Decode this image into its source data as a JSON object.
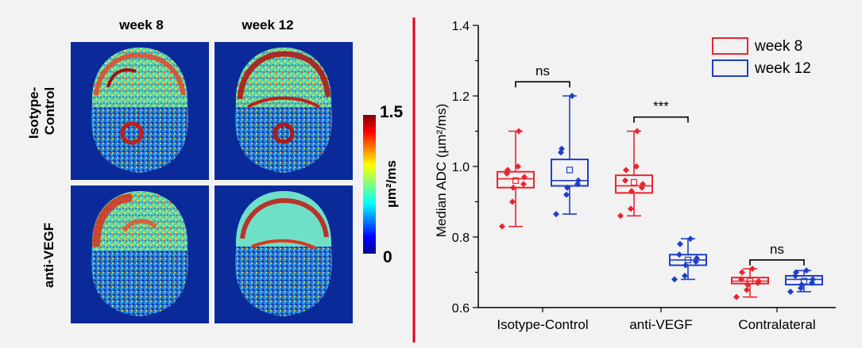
{
  "left_panel": {
    "columns": [
      "week 8",
      "week 12"
    ],
    "rows": [
      "Isotype-\nControl",
      "anti-VEGF"
    ],
    "colorbar": {
      "max_label": "1.5",
      "min_label": "0",
      "unit_label": "µm²/ms",
      "colormap": "jet"
    }
  },
  "divider_color": "#e0001b",
  "chart_data": {
    "type": "box",
    "xlabel": "",
    "ylabel": "Median ADC (µm²/ms)",
    "ylim": [
      0.6,
      1.4
    ],
    "yticks": [
      "0.6",
      "0.8",
      "1.0",
      "1.2",
      "1.4"
    ],
    "categories": [
      "Isotype-Control",
      "anti-VEGF",
      "Contralateral"
    ],
    "legend_position": "top-right",
    "grid": false,
    "series": [
      {
        "name": "week 8",
        "color": "#e8252f",
        "boxes": [
          {
            "min": 0.83,
            "q1": 0.94,
            "median": 0.965,
            "q3": 0.985,
            "max": 1.1,
            "mean": 0.96,
            "points": [
              0.83,
              0.9,
              0.94,
              0.95,
              0.97,
              0.98,
              0.99,
              1.0,
              1.1
            ]
          },
          {
            "min": 0.86,
            "q1": 0.925,
            "median": 0.945,
            "q3": 0.975,
            "max": 1.1,
            "mean": 0.955,
            "points": [
              0.86,
              0.88,
              0.93,
              0.94,
              0.95,
              0.96,
              0.99,
              1.0,
              1.1
            ]
          },
          {
            "min": 0.63,
            "q1": 0.668,
            "median": 0.675,
            "q3": 0.685,
            "max": 0.71,
            "mean": 0.675,
            "points": [
              0.63,
              0.65,
              0.665,
              0.67,
              0.675,
              0.68,
              0.7,
              0.71
            ]
          }
        ]
      },
      {
        "name": "week 12",
        "color": "#1f3fc8",
        "boxes": [
          {
            "min": 0.865,
            "q1": 0.945,
            "median": 0.96,
            "q3": 1.02,
            "max": 1.2,
            "mean": 0.99,
            "points": [
              0.865,
              0.92,
              0.94,
              0.95,
              0.96,
              1.04,
              1.05,
              1.2
            ]
          },
          {
            "min": 0.68,
            "q1": 0.72,
            "median": 0.735,
            "q3": 0.75,
            "max": 0.795,
            "mean": 0.735,
            "points": [
              0.68,
              0.69,
              0.72,
              0.73,
              0.74,
              0.75,
              0.78,
              0.795
            ]
          },
          {
            "min": 0.645,
            "q1": 0.665,
            "median": 0.68,
            "q3": 0.69,
            "max": 0.705,
            "mean": 0.675,
            "points": [
              0.645,
              0.655,
              0.665,
              0.67,
              0.68,
              0.69,
              0.7,
              0.705
            ]
          }
        ]
      }
    ],
    "annotations": [
      {
        "text": "ns",
        "category": "Isotype-Control",
        "y": 1.24
      },
      {
        "text": "***",
        "category": "anti-VEGF",
        "y": 1.14
      },
      {
        "text": "ns",
        "category": "Contralateral",
        "y": 0.735
      }
    ]
  }
}
